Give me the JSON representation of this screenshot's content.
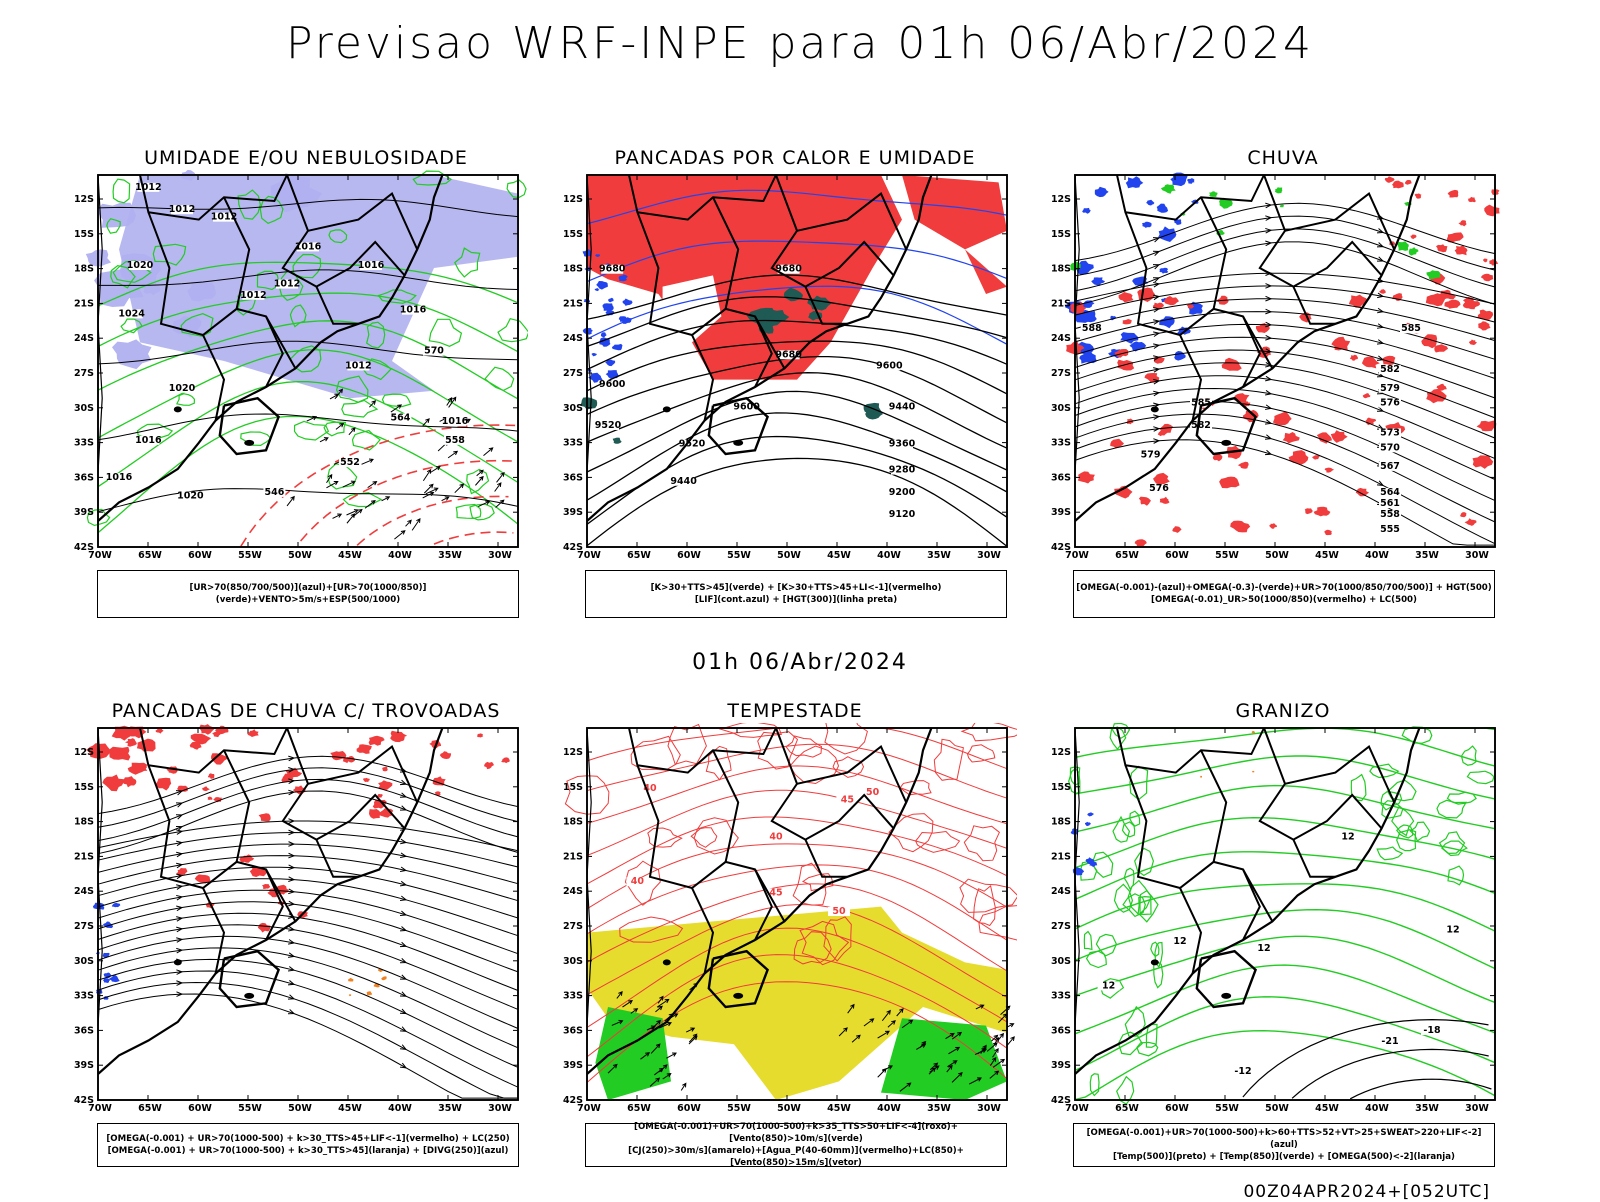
{
  "title": "Previsao WRF-INPE  para 01h 06/Abr/2024",
  "middle_date": "01h 06/Abr/2024",
  "footer": "00Z04APR2024+[052UTC]",
  "lat_ticks": [
    "12S",
    "15S",
    "18S",
    "21S",
    "24S",
    "27S",
    "30S",
    "33S",
    "36S",
    "39S",
    "42S"
  ],
  "lon_ticks": [
    "70W",
    "65W",
    "60W",
    "55W",
    "50W",
    "45W",
    "40W",
    "35W",
    "30W"
  ],
  "colors": {
    "lavender": "#b0b0f0",
    "green": "#22cc22",
    "red": "#f03c3c",
    "blue": "#2244ee",
    "teal": "#1f5a55",
    "yellow": "#e6dc2e",
    "orange": "#f08020",
    "line": "#000000"
  },
  "panels": [
    {
      "id": "umidade",
      "title": "UMIDADE E/OU NEBULOSIDADE",
      "legend": [
        "[UR>70(850/700/500)](azul)+[UR>70(1000/850)](verde)+VENTO>5m/s+ESP(500/1000)"
      ],
      "contour_labels": [
        "1012",
        "1012",
        "1012",
        "1012",
        "1016",
        "1016",
        "1020",
        "1024",
        "1012",
        "1012",
        "1016",
        "1016",
        "1020",
        "1016",
        "1020",
        "1016",
        "570",
        "564",
        "558",
        "552",
        "546"
      ]
    },
    {
      "id": "pancadas-calor",
      "title": "PANCADAS POR CALOR E UMIDADE",
      "legend": [
        "[K>30+TTS>45](verde) + [K>30+TTS>45+LI<-1](vermelho)",
        "[LIF](cont.azul) + [HGT(300)](linha preta)"
      ],
      "contour_labels": [
        "9680",
        "9680",
        "9600",
        "9680",
        "9600",
        "9600",
        "9520",
        "9520",
        "9440",
        "9440",
        "9360",
        "9280",
        "9200",
        "9120"
      ]
    },
    {
      "id": "chuva",
      "title": "CHUVA",
      "legend": [
        "[OMEGA(-0.001)-(azul)+OMEGA(-0.3)-(verde)+UR>70(1000/850/700/500)] + HGT(500)",
        "[OMEGA(-0.01)_UR>50(1000/850)(vermelho) + LC(500)"
      ],
      "contour_labels": [
        "588",
        "585",
        "582",
        "579",
        "576",
        "573",
        "570",
        "567",
        "564",
        "561",
        "558",
        "555",
        "585",
        "582",
        "579",
        "576"
      ]
    },
    {
      "id": "pancadas-trovoadas",
      "title": "PANCADAS DE CHUVA C/ TROVOADAS",
      "legend": [
        "[OMEGA(-0.001) + UR>70(1000-500) + k>30_TTS>45+LIF<-1](vermelho) + LC(250)",
        "[OMEGA(-0.001) + UR>70(1000-500) + k>30_TTS>45](laranja) + [DIVG(250)](azul)"
      ]
    },
    {
      "id": "tempestade",
      "title": "TEMPESTADE",
      "legend": [
        "[OMEGA(-0.001)+UR>70(1000-500)+k>35_TTS>50+LIF<-4](roxo)+[Vento(850)>10m/s](verde)",
        "[CJ(250)>30m/s](amarelo)+[Agua_P(40-60mm)](vermelho)+LC(850)+[Vento(850)>15m/s](vetor)"
      ],
      "contour_labels": [
        "40",
        "40",
        "45",
        "50",
        "40",
        "45",
        "50"
      ]
    },
    {
      "id": "granizo",
      "title": "GRANIZO",
      "legend": [
        "[OMEGA(-0.001)+UR>70(1000-500)+k>60+TTS>52+VT>25+SWEAT>220+LIF<-2](azul)",
        "[Temp(500)](preto) + [Temp(850)](verde) + [OMEGA(500)<-2](laranja)"
      ],
      "contour_labels": [
        "12",
        "12",
        "-18",
        "-21",
        "12",
        "-12",
        "12",
        "12"
      ]
    }
  ]
}
